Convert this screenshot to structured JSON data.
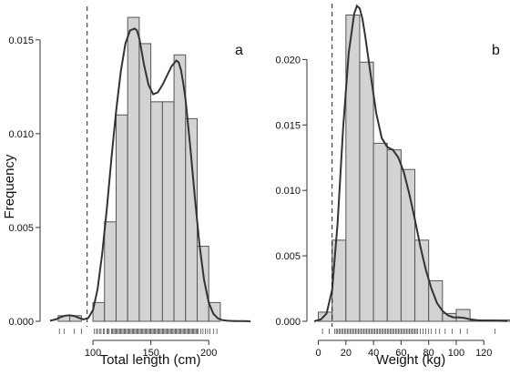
{
  "chart_data": [
    {
      "type": "bar",
      "panel": "a",
      "xlabel": "Total length (cm)",
      "ylabel": "Frequency",
      "xlim": [
        63,
        236
      ],
      "ylim": [
        0,
        0.0163
      ],
      "xticks": [
        "100",
        "150",
        "200"
      ],
      "xtick_values": [
        100,
        150,
        200
      ],
      "yticks": [
        "0.000",
        "0.005",
        "0.010",
        "0.015"
      ],
      "ytick_values": [
        0,
        0.005,
        0.01,
        0.015
      ],
      "cutoff": 95,
      "bins": [
        {
          "x0": 70,
          "x1": 80,
          "value": 0.0003
        },
        {
          "x0": 80,
          "x1": 90,
          "value": 0.0003
        },
        {
          "x0": 100,
          "x1": 110,
          "value": 0.001
        },
        {
          "x0": 110,
          "x1": 120,
          "value": 0.0053
        },
        {
          "x0": 120,
          "x1": 130,
          "value": 0.011
        },
        {
          "x0": 130,
          "x1": 140,
          "value": 0.0162
        },
        {
          "x0": 140,
          "x1": 150,
          "value": 0.0148
        },
        {
          "x0": 150,
          "x1": 160,
          "value": 0.0117
        },
        {
          "x0": 160,
          "x1": 170,
          "value": 0.0117
        },
        {
          "x0": 170,
          "x1": 180,
          "value": 0.0142
        },
        {
          "x0": 180,
          "x1": 190,
          "value": 0.0108
        },
        {
          "x0": 190,
          "x1": 200,
          "value": 0.004
        },
        {
          "x0": 200,
          "x1": 210,
          "value": 0.001
        }
      ],
      "density": {
        "x": [
          63,
          68,
          72,
          76,
          80,
          84,
          88,
          92,
          96,
          100,
          104,
          108,
          112,
          116,
          120,
          124,
          128,
          132,
          136,
          138,
          140,
          142,
          144,
          148,
          152,
          156,
          160,
          164,
          168,
          172,
          174,
          176,
          178,
          180,
          184,
          188,
          192,
          196,
          200,
          204,
          208,
          212,
          216,
          220,
          225,
          230,
          236
        ],
        "y": [
          3e-05,
          0.0001,
          0.00022,
          0.0003,
          0.00032,
          0.00028,
          0.00018,
          0.0001,
          0.00018,
          0.0006,
          0.0017,
          0.0036,
          0.006,
          0.0087,
          0.0112,
          0.0133,
          0.0148,
          0.0155,
          0.0156,
          0.0155,
          0.0151,
          0.0144,
          0.0137,
          0.0126,
          0.0121,
          0.0122,
          0.0126,
          0.0131,
          0.0136,
          0.0139,
          0.0138,
          0.0134,
          0.0127,
          0.0118,
          0.0093,
          0.0066,
          0.0041,
          0.0022,
          0.001,
          0.0004,
          0.00015,
          6e-05,
          3e-05,
          2e-05,
          1e-05,
          1e-05,
          0.0
        ]
      },
      "rug": [
        71,
        75,
        84,
        90,
        101,
        103,
        104,
        106,
        107,
        109,
        110,
        112,
        113,
        114,
        116,
        117,
        118,
        119,
        120,
        121,
        122,
        123,
        124,
        125,
        126,
        127,
        128,
        129,
        130,
        131,
        132,
        133,
        134,
        135,
        136,
        137,
        138,
        139,
        140,
        141,
        142,
        143,
        144,
        145,
        146,
        147,
        148,
        149,
        150,
        151,
        152,
        153,
        154,
        155,
        156,
        157,
        158,
        159,
        160,
        161,
        162,
        163,
        164,
        165,
        166,
        167,
        168,
        169,
        170,
        171,
        172,
        173,
        174,
        175,
        176,
        177,
        178,
        179,
        180,
        181,
        182,
        183,
        184,
        185,
        186,
        187,
        188,
        189,
        190,
        191,
        193,
        195,
        197,
        199,
        201,
        204,
        207
      ]
    },
    {
      "type": "bar",
      "panel": "b",
      "xlabel": "Weight (kg)",
      "ylabel": "",
      "xlim": [
        -3,
        137
      ],
      "ylim": [
        0,
        0.0242
      ],
      "xticks": [
        "0",
        "20",
        "40",
        "60",
        "80",
        "100",
        "120"
      ],
      "xtick_values": [
        0,
        20,
        40,
        60,
        80,
        100,
        120
      ],
      "yticks": [
        "0.000",
        "0.005",
        "0.010",
        "0.015",
        "0.020"
      ],
      "ytick_values": [
        0,
        0.005,
        0.01,
        0.015,
        0.02
      ],
      "cutoff": 10,
      "bins": [
        {
          "x0": 0,
          "x1": 10,
          "value": 0.0007
        },
        {
          "x0": 10,
          "x1": 20,
          "value": 0.0062
        },
        {
          "x0": 20,
          "x1": 30,
          "value": 0.0234
        },
        {
          "x0": 30,
          "x1": 40,
          "value": 0.0198
        },
        {
          "x0": 40,
          "x1": 50,
          "value": 0.0136
        },
        {
          "x0": 50,
          "x1": 60,
          "value": 0.0131
        },
        {
          "x0": 60,
          "x1": 70,
          "value": 0.0116
        },
        {
          "x0": 70,
          "x1": 80,
          "value": 0.0062
        },
        {
          "x0": 80,
          "x1": 90,
          "value": 0.0031
        },
        {
          "x0": 90,
          "x1": 100,
          "value": 0.0006
        },
        {
          "x0": 100,
          "x1": 110,
          "value": 0.0009
        },
        {
          "x0": 110,
          "x1": 120,
          "value": 5e-05
        },
        {
          "x0": 120,
          "x1": 130,
          "value": 0.0001
        },
        {
          "x0": 130,
          "x1": 140,
          "value": 0.0001
        }
      ],
      "density": {
        "x": [
          -3,
          2,
          6,
          10,
          14,
          18,
          22,
          26,
          28,
          30,
          32,
          34,
          38,
          42,
          46,
          50,
          54,
          58,
          62,
          66,
          70,
          74,
          78,
          82,
          86,
          90,
          94,
          98,
          102,
          106,
          110,
          115,
          120,
          125,
          130,
          137
        ],
        "y": [
          0.0,
          0.00015,
          0.0006,
          0.0024,
          0.0075,
          0.0148,
          0.0205,
          0.0235,
          0.0241,
          0.0239,
          0.0231,
          0.0218,
          0.0188,
          0.0159,
          0.014,
          0.0133,
          0.0131,
          0.0125,
          0.0114,
          0.0097,
          0.0078,
          0.0057,
          0.0039,
          0.0025,
          0.0014,
          0.0008,
          0.00045,
          0.0003,
          0.0003,
          0.00025,
          0.00015,
          8e-05,
          6e-05,
          6e-05,
          4e-05,
          2e-05
        ]
      },
      "rug": [
        3,
        8,
        12,
        13,
        14,
        15,
        16,
        17,
        18,
        19,
        20,
        21,
        22,
        23,
        24,
        25,
        26,
        27,
        28,
        29,
        30,
        31,
        32,
        33,
        34,
        35,
        36,
        37,
        38,
        39,
        40,
        41,
        42,
        43,
        44,
        45,
        46,
        47,
        48,
        49,
        50,
        51,
        52,
        53,
        54,
        55,
        56,
        57,
        58,
        59,
        60,
        61,
        62,
        63,
        64,
        65,
        66,
        67,
        68,
        69,
        70,
        71,
        72,
        74,
        76,
        78,
        80,
        82,
        85,
        88,
        92,
        97,
        103,
        108,
        128
      ]
    }
  ],
  "colors": {
    "bar_fill": "#d3d3d3",
    "bar_stroke": "#555555",
    "density": "#333333"
  }
}
